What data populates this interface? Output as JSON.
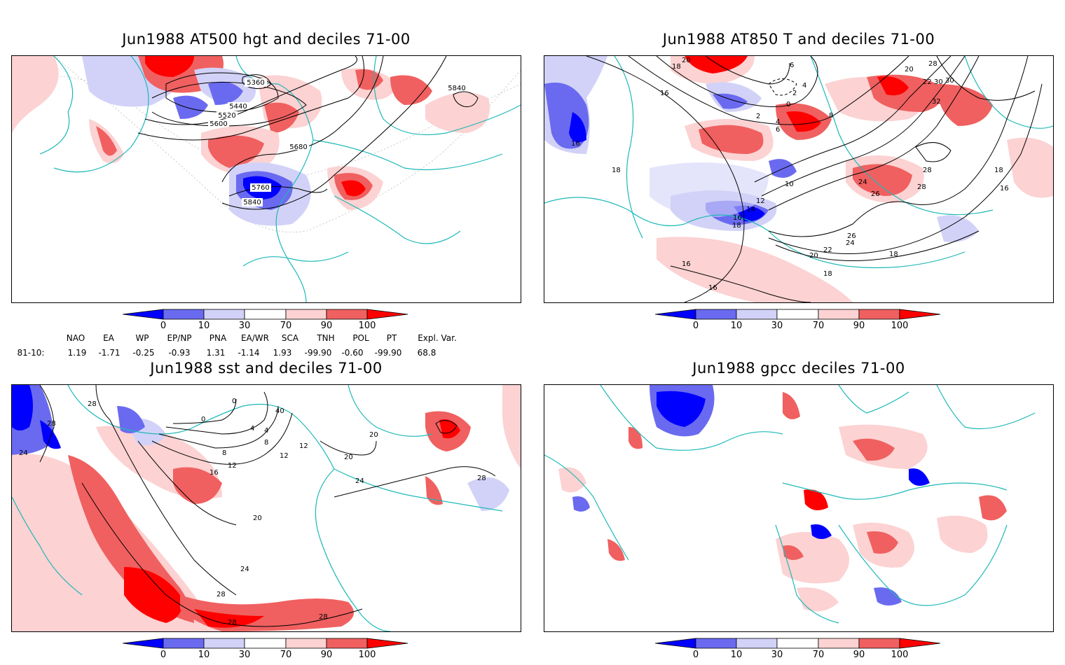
{
  "panels": [
    {
      "title": "Jun1988 AT500 hgt and deciles 71-00",
      "contour_labels": [
        "5360",
        "5440",
        "5520",
        "5600",
        "5680",
        "5760",
        "5840",
        "5840"
      ]
    },
    {
      "title": "Jun1988 AT850 T and deciles 71-00",
      "contour_labels": [
        "20",
        "18",
        "16",
        "16",
        "18",
        "6",
        "4",
        "2",
        "0",
        "2",
        "4",
        "6",
        "8",
        "10",
        "12",
        "14",
        "16",
        "18",
        "20",
        "22",
        "24",
        "26",
        "28",
        "30",
        "32",
        "28",
        "26",
        "24",
        "22",
        "20",
        "18",
        "16",
        "16",
        "18",
        "18",
        "16",
        "28",
        "30"
      ]
    },
    {
      "title": "Jun1988 sst and deciles 71-00",
      "contour_labels": [
        "28",
        "28",
        "24",
        "20",
        "0",
        "0",
        "4",
        "8",
        "12",
        "16",
        "12",
        "12",
        "8",
        "4",
        "20",
        "24",
        "28",
        "20",
        "24",
        "28",
        "28",
        "28",
        "40"
      ]
    },
    {
      "title": "Jun1988 gpcc deciles 71-00",
      "contour_labels": []
    }
  ],
  "colorbar": {
    "labels": [
      "0",
      "10",
      "30",
      "70",
      "90",
      "100"
    ],
    "colors": [
      "#0000ff",
      "#6a6af0",
      "#d2d2f8",
      "#ffffff",
      "#fcd2d2",
      "#f06060",
      "#ff0000"
    ]
  },
  "indices": {
    "headers": [
      "NAO",
      "EA",
      "WP",
      "EP/NP",
      "PNA",
      "EA/WR",
      "SCA",
      "TNH",
      "POL",
      "PT",
      "Expl. Var."
    ],
    "period": "81-10:",
    "values": [
      "1.19",
      "-1.71",
      "-0.25",
      "-0.93",
      "1.31",
      "-1.14",
      "1.93",
      "-99.90",
      "-0.60",
      "-99.90",
      "68.8"
    ]
  },
  "colors": {
    "coast": "#1fb8b8",
    "contour": "#000000",
    "frame": "#000000"
  }
}
